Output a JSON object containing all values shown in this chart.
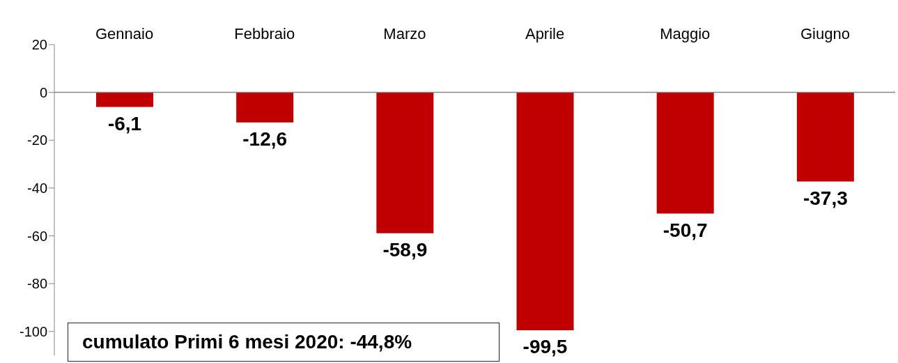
{
  "chart_data": {
    "type": "bar",
    "categories": [
      "Gennaio",
      "Febbraio",
      "Marzo",
      "Aprile",
      "Maggio",
      "Giugno"
    ],
    "values": [
      -6.1,
      -12.6,
      -58.9,
      -99.5,
      -50.7,
      -37.3
    ],
    "value_labels": [
      "-6,1",
      "-12,6",
      "-58,9",
      "-99,5",
      "-50,7",
      "-37,3"
    ],
    "color": "#c00000",
    "ylim": [
      -110,
      20
    ],
    "yticks": [
      20,
      0,
      -20,
      -40,
      -60,
      -80,
      -100
    ],
    "grid": false,
    "ref_lines": [
      {
        "axis": "y",
        "value": 0,
        "color": "#888888"
      }
    ],
    "annotations": [
      "cumulato Primi 6 mesi 2020: -44,8%"
    ]
  }
}
